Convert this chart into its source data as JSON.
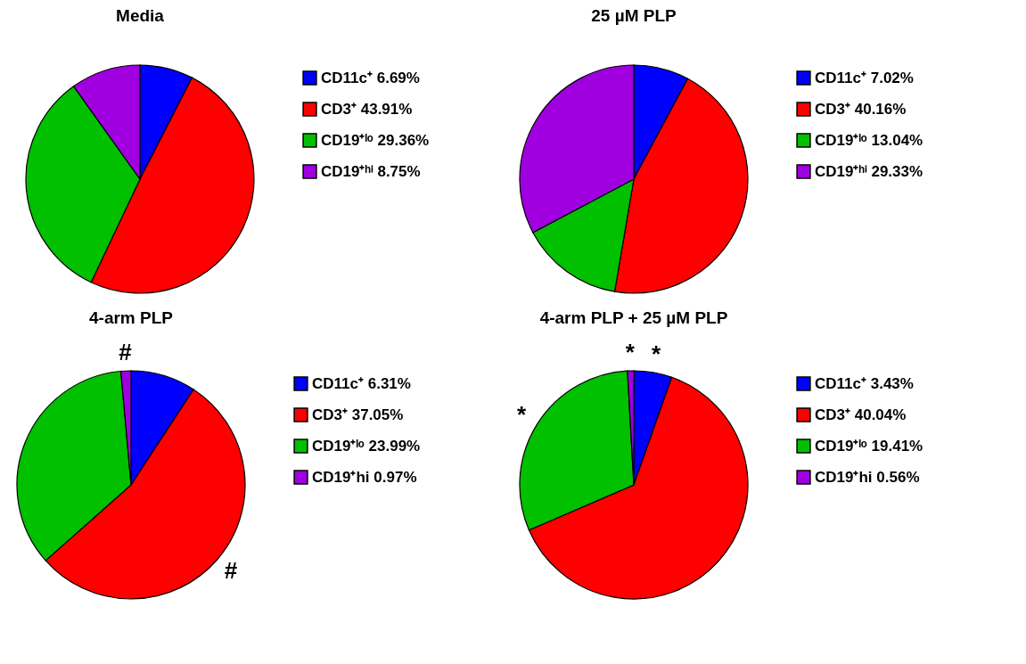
{
  "chart_data": [
    {
      "type": "pie",
      "title": "Media",
      "categories": [
        "CD11c⁺",
        "CD3⁺",
        "CD19⁺ˡᵒ",
        "CD19⁺ʰⁱ"
      ],
      "values": [
        6.69,
        43.91,
        29.36,
        8.75
      ],
      "value_labels": [
        "6.69%",
        "43.91%",
        "29.36%",
        "8.75%"
      ],
      "colors": [
        "#0000ff",
        "#ff0000",
        "#00c000",
        "#a000e0"
      ],
      "legend": "right"
    },
    {
      "type": "pie",
      "title": "25 µM PLP",
      "categories": [
        "CD11c⁺",
        "CD3⁺",
        "CD19⁺ˡᵒ",
        "CD19⁺ʰⁱ"
      ],
      "values": [
        7.02,
        40.16,
        13.04,
        29.33
      ],
      "value_labels": [
        "7.02%",
        "40.16%",
        "13.04%",
        "29.33%"
      ],
      "colors": [
        "#0000ff",
        "#ff0000",
        "#00c000",
        "#a000e0"
      ],
      "legend": "right"
    },
    {
      "type": "pie",
      "title": "4-arm PLP",
      "categories": [
        "CD11c⁺",
        "CD3⁺",
        "CD19⁺ˡᵒ",
        "CD19⁺hi"
      ],
      "values": [
        6.31,
        37.05,
        23.99,
        0.97
      ],
      "value_labels": [
        "6.31%",
        "37.05%",
        "23.99%",
        "0.97%"
      ],
      "colors": [
        "#0000ff",
        "#ff0000",
        "#00c000",
        "#a000e0"
      ],
      "legend": "right",
      "annotations": [
        {
          "text": "#",
          "x": "CD3⁺"
        },
        {
          "text": "#",
          "x": "CD19⁺hi"
        }
      ]
    },
    {
      "type": "pie",
      "title": "4-arm PLP + 25 µM PLP",
      "categories": [
        "CD11c⁺",
        "CD3⁺",
        "CD19⁺ˡᵒ",
        "CD19⁺hi"
      ],
      "values": [
        3.43,
        40.04,
        19.41,
        0.56
      ],
      "value_labels": [
        "3.43%",
        "40.04%",
        "19.41%",
        "0.56%"
      ],
      "colors": [
        "#0000ff",
        "#ff0000",
        "#00c000",
        "#a000e0"
      ],
      "legend": "right",
      "annotations": [
        {
          "text": "*",
          "x": "CD11c⁺"
        },
        {
          "text": "*",
          "x": "CD19⁺ˡᵒ"
        },
        {
          "text": "*",
          "x": "CD19⁺hi"
        }
      ]
    }
  ]
}
